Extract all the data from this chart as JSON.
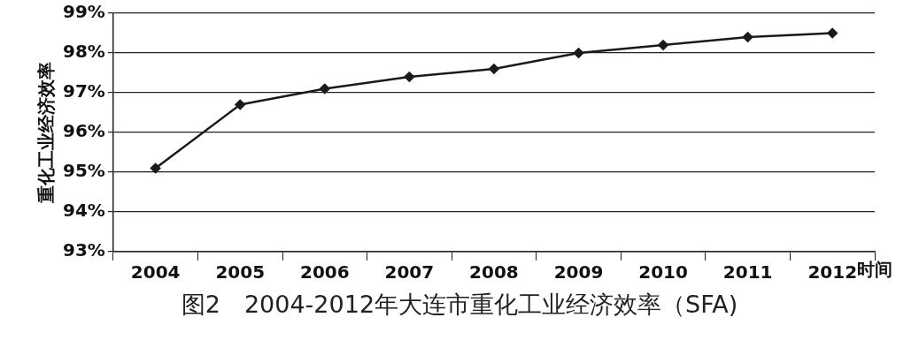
{
  "chart_data": {
    "type": "line",
    "title": "图2　2004-2012年大连市重化工业经济效率（SFA)",
    "xlabel": "时间",
    "ylabel": "重化工业经济效率",
    "categories": [
      "2004",
      "2005",
      "2006",
      "2007",
      "2008",
      "2009",
      "2010",
      "2011",
      "2012"
    ],
    "series": [
      {
        "color": "#1a1a1a",
        "values": [
          95.1,
          96.7,
          97.1,
          97.4,
          97.6,
          98.0,
          98.2,
          98.4,
          98.5
        ]
      }
    ],
    "ylim": [
      93,
      99
    ],
    "yticks": [
      {
        "value": 93,
        "label": "93%"
      },
      {
        "value": 94,
        "label": "94%"
      },
      {
        "value": 95,
        "label": "95%"
      },
      {
        "value": 96,
        "label": "96%"
      },
      {
        "value": 97,
        "label": "97%"
      },
      {
        "value": 98,
        "label": "98%"
      },
      {
        "value": 99,
        "label": "99%"
      }
    ],
    "grid": "y",
    "legend": false,
    "marker": "diamond",
    "line_style": "solid"
  }
}
